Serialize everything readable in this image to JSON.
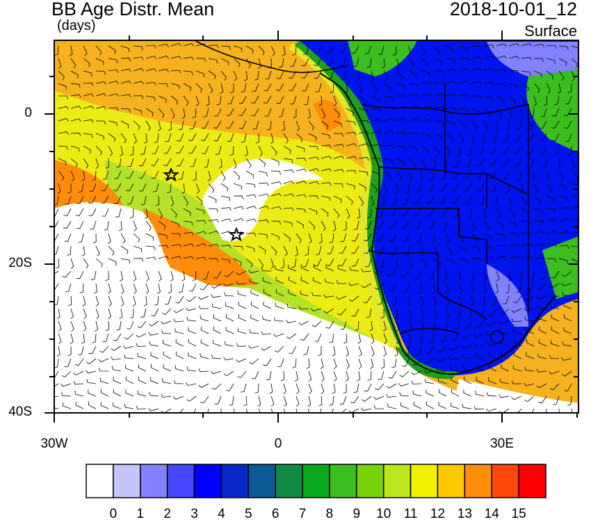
{
  "header": {
    "title": "BB Age Distr. Mean",
    "units": "(days)",
    "datetime": "2018-10-01_12",
    "level": "Surface"
  },
  "map": {
    "lat_labels": [
      "0",
      "20S",
      "40S"
    ],
    "lon_labels": [
      "30W",
      "0",
      "30E"
    ],
    "markers": [
      "star-1",
      "star-2"
    ]
  },
  "colorbar": {
    "levels": [
      "0",
      "1",
      "2",
      "3",
      "4",
      "5",
      "6",
      "7",
      "8",
      "9",
      "10",
      "11",
      "12",
      "13",
      "14",
      "15"
    ],
    "colors": [
      "#ffffff",
      "#c4c4ff",
      "#8282ff",
      "#4646ff",
      "#0000ff",
      "#0a28c8",
      "#0a5a96",
      "#0f8b46",
      "#0aaa1e",
      "#3cbe1e",
      "#78d20a",
      "#bee61e",
      "#f0f000",
      "#ffc800",
      "#ff8c0a",
      "#ff460a",
      "#ff0000"
    ]
  },
  "fields": {
    "ocean_color": "#f0aa1e",
    "land_color": "#0014f0"
  }
}
